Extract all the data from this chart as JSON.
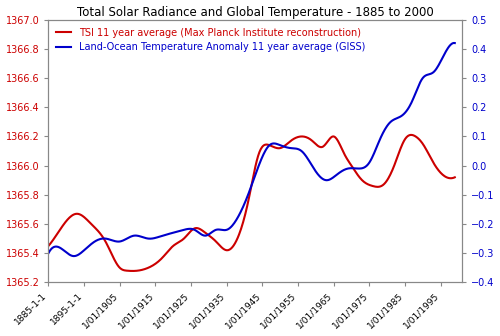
{
  "title": "Total Solar Radiance and Global Temperature - 1885 to 2000",
  "tsi_label": "TSI 11 year average (Max Planck Institute reconstruction)",
  "temp_label": "Land-Ocean Temperature Anomaly 11 year average (GISS)",
  "tsi_color": "#cc0000",
  "temp_color": "#0000cc",
  "tsi_ylim": [
    1365.2,
    1367.0
  ],
  "temp_ylim": [
    -0.4,
    0.5
  ],
  "tsi_yticks": [
    1365.2,
    1365.4,
    1365.6,
    1365.8,
    1366.0,
    1366.2,
    1366.4,
    1366.6,
    1366.8,
    1367.0
  ],
  "temp_yticks": [
    -0.4,
    -0.3,
    -0.2,
    -0.1,
    0.0,
    0.1,
    0.2,
    0.3,
    0.4,
    0.5
  ],
  "xtick_labels": [
    "1885-1-1",
    "1895-1-1",
    "1/01/1905",
    "1/01/1915",
    "1/01/1925",
    "1/01/1935",
    "1/01/1945",
    "1/01/1955",
    "1/01/1965",
    "1/01/1975",
    "1/01/1985",
    "1/01/1995"
  ],
  "xtick_years": [
    1885,
    1895,
    1905,
    1915,
    1925,
    1935,
    1945,
    1955,
    1965,
    1975,
    1985,
    1995
  ],
  "tsi_knots_x": [
    1885,
    1890,
    1893,
    1897,
    1901,
    1905,
    1907,
    1910,
    1913,
    1917,
    1920,
    1923,
    1926,
    1929,
    1932,
    1935,
    1938,
    1941,
    1944,
    1947,
    1950,
    1953,
    1956,
    1959,
    1962,
    1965,
    1968,
    1970,
    1973,
    1976,
    1979,
    1982,
    1985,
    1988,
    1990,
    1993,
    1996,
    1999
  ],
  "tsi_knots_y": [
    1365.45,
    1365.62,
    1365.67,
    1365.6,
    1365.48,
    1365.3,
    1365.28,
    1365.28,
    1365.3,
    1365.37,
    1365.45,
    1365.5,
    1365.57,
    1365.54,
    1365.48,
    1365.42,
    1365.5,
    1365.75,
    1366.08,
    1366.14,
    1366.12,
    1366.17,
    1366.2,
    1366.17,
    1366.13,
    1366.2,
    1366.08,
    1366.0,
    1365.9,
    1365.86,
    1365.87,
    1366.0,
    1366.18,
    1366.2,
    1366.15,
    1366.02,
    1365.93,
    1365.92
  ],
  "temp_knots_x": [
    1885,
    1888,
    1892,
    1895,
    1898,
    1901,
    1905,
    1909,
    1913,
    1917,
    1920,
    1923,
    1926,
    1929,
    1932,
    1935,
    1938,
    1941,
    1944,
    1947,
    1950,
    1953,
    1956,
    1960,
    1963,
    1966,
    1969,
    1972,
    1975,
    1978,
    1981,
    1984,
    1987,
    1990,
    1993,
    1996,
    1999
  ],
  "temp_knots_y": [
    -0.3,
    -0.28,
    -0.31,
    -0.29,
    -0.26,
    -0.25,
    -0.26,
    -0.24,
    -0.25,
    -0.24,
    -0.23,
    -0.22,
    -0.22,
    -0.24,
    -0.22,
    -0.22,
    -0.18,
    -0.1,
    0.0,
    0.07,
    0.07,
    0.06,
    0.05,
    -0.02,
    -0.05,
    -0.03,
    -0.01,
    -0.01,
    0.01,
    0.09,
    0.15,
    0.17,
    0.22,
    0.3,
    0.32,
    0.38,
    0.42
  ],
  "background_color": "#ffffff",
  "spine_color": "#888888",
  "title_fontsize": 8.5,
  "tick_fontsize": 7.0,
  "legend_fontsize": 7.0,
  "linewidth": 1.5
}
